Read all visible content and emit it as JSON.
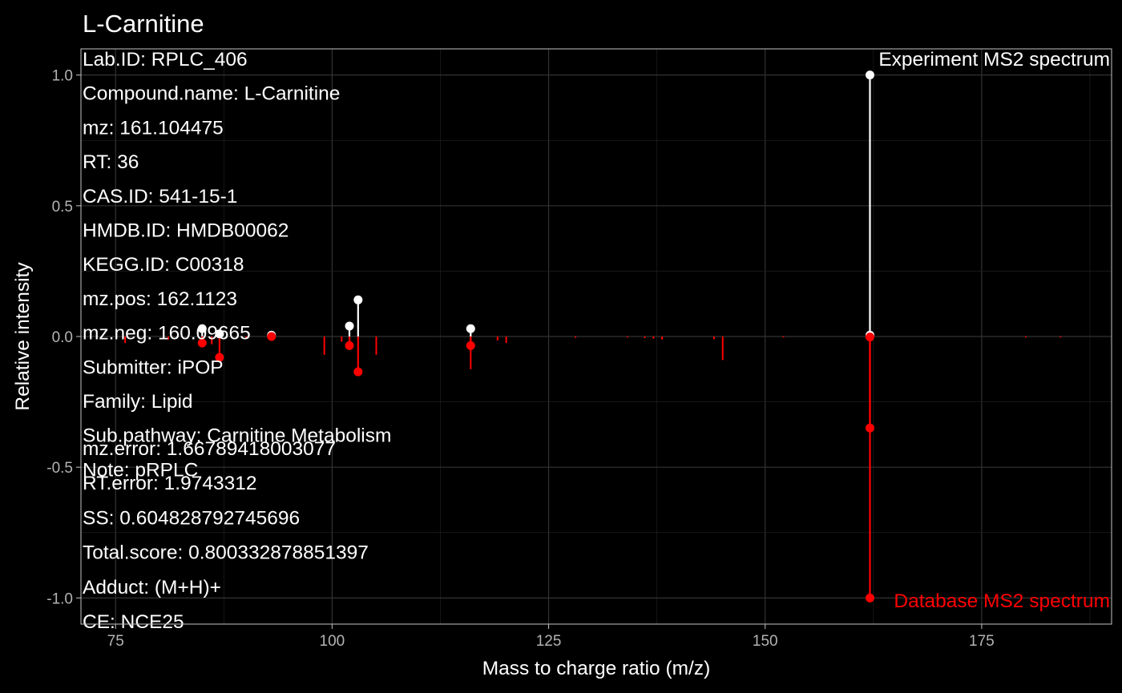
{
  "chart_data": {
    "type": "scatter",
    "title": "L-Carnitine",
    "xlabel": "Mass to charge ratio (m/z)",
    "ylabel": "Relative intensity",
    "xlim": [
      71,
      190
    ],
    "ylim": [
      -1.1,
      1.1
    ],
    "x_ticks": [
      75,
      100,
      125,
      150,
      175
    ],
    "x_tick_labels": [
      "75",
      "100",
      "125",
      "150",
      "175"
    ],
    "y_ticks": [
      1.0,
      0.5,
      0.0,
      -0.5,
      -1.0
    ],
    "y_tick_labels": [
      "1.0",
      "0.5",
      "0.0",
      "-0.5",
      "-1.0"
    ],
    "grid": true,
    "info_lines": [
      "Lab.ID: RPLC_406",
      "Compound.name: L-Carnitine",
      "mz: 161.104475",
      "RT: 36",
      "CAS.ID: 541-15-1",
      "HMDB.ID: HMDB00062",
      "KEGG.ID: C00318",
      "mz.pos: 162.1123",
      "mz.neg: 160.09665",
      "Submitter: iPOP",
      "Family: Lipid",
      "Sub.pathway: Carnitine Metabolism",
      "Note: pRPLC"
    ],
    "score_lines": [
      "mz.error: 1.66789418003077",
      "RT.error: 1.9743312",
      "SS: 0.604828792745696",
      "Total.score: 0.800332878851397",
      "Adduct: (M+H)+",
      "CE: NCE25"
    ],
    "series": [
      {
        "name": "Experiment MS2 spectrum",
        "color": "#ffffff",
        "points": [
          {
            "mz": 85.0,
            "intensity": 0.03
          },
          {
            "mz": 87.0,
            "intensity": 0.01
          },
          {
            "mz": 93.0,
            "intensity": 0.005
          },
          {
            "mz": 102.0,
            "intensity": 0.04
          },
          {
            "mz": 103.0,
            "intensity": 0.14
          },
          {
            "mz": 116.0,
            "intensity": 0.03
          },
          {
            "mz": 162.1,
            "intensity": 1.0
          },
          {
            "mz": 162.1,
            "intensity": 0.005
          }
        ]
      },
      {
        "name": "Database MS2 spectrum",
        "color": "#ff0000",
        "points": [
          {
            "mz": 85.0,
            "intensity": -0.025
          },
          {
            "mz": 87.0,
            "intensity": -0.08
          },
          {
            "mz": 93.0,
            "intensity": 0.0
          },
          {
            "mz": 102.0,
            "intensity": -0.035
          },
          {
            "mz": 103.0,
            "intensity": -0.135
          },
          {
            "mz": 116.0,
            "intensity": -0.035
          },
          {
            "mz": 162.1,
            "intensity": -0.35
          },
          {
            "mz": 162.1,
            "intensity": -1.0
          },
          {
            "mz": 162.1,
            "intensity": -0.002
          }
        ],
        "unmatched_peaks": [
          {
            "mz": 76.1,
            "intensity": -0.025
          },
          {
            "mz": 81.1,
            "intensity": -0.012
          },
          {
            "mz": 86.1,
            "intensity": -0.03
          },
          {
            "mz": 90.1,
            "intensity": -0.008
          },
          {
            "mz": 99.1,
            "intensity": -0.07
          },
          {
            "mz": 101.1,
            "intensity": -0.02
          },
          {
            "mz": 105.1,
            "intensity": -0.07
          },
          {
            "mz": 116.0,
            "intensity": -0.125
          },
          {
            "mz": 119.1,
            "intensity": -0.015
          },
          {
            "mz": 120.1,
            "intensity": -0.025
          },
          {
            "mz": 128.1,
            "intensity": -0.005
          },
          {
            "mz": 134.1,
            "intensity": -0.004
          },
          {
            "mz": 136.1,
            "intensity": -0.006
          },
          {
            "mz": 137.1,
            "intensity": -0.008
          },
          {
            "mz": 138.1,
            "intensity": -0.012
          },
          {
            "mz": 144.1,
            "intensity": -0.01
          },
          {
            "mz": 145.1,
            "intensity": -0.09
          },
          {
            "mz": 152.1,
            "intensity": -0.004
          },
          {
            "mz": 180.1,
            "intensity": -0.004
          },
          {
            "mz": 184.1,
            "intensity": -0.004
          }
        ]
      }
    ]
  }
}
